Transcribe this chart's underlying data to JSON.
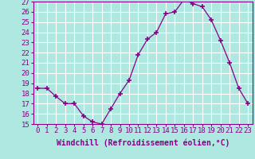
{
  "x": [
    0,
    1,
    2,
    3,
    4,
    5,
    6,
    7,
    8,
    9,
    10,
    11,
    12,
    13,
    14,
    15,
    16,
    17,
    18,
    19,
    20,
    21,
    22,
    23
  ],
  "y": [
    18.5,
    18.5,
    17.7,
    17.0,
    17.0,
    15.8,
    15.2,
    15.0,
    16.5,
    18.0,
    19.3,
    21.8,
    23.3,
    24.0,
    25.8,
    26.0,
    27.2,
    26.8,
    26.5,
    25.2,
    23.2,
    21.0,
    18.5,
    17.0
  ],
  "line_color": "#880088",
  "marker_color": "#880088",
  "bg_color": "#aee8e0",
  "grid_color": "#ffffff",
  "xlabel": "Windchill (Refroidissement éolien,°C)",
  "xlabel_fontsize": 7,
  "tick_fontsize": 6.5,
  "ylim": [
    15,
    27
  ],
  "yticks": [
    15,
    16,
    17,
    18,
    19,
    20,
    21,
    22,
    23,
    24,
    25,
    26,
    27
  ],
  "xticks": [
    0,
    1,
    2,
    3,
    4,
    5,
    6,
    7,
    8,
    9,
    10,
    11,
    12,
    13,
    14,
    15,
    16,
    17,
    18,
    19,
    20,
    21,
    22,
    23
  ]
}
